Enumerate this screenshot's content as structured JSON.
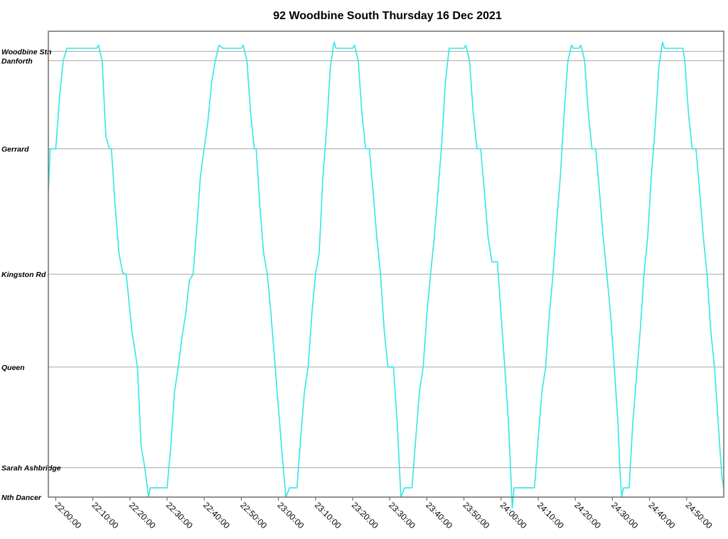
{
  "chart_data": {
    "type": "line",
    "title": "92 Woodbine South Thursday 16 Dec 2021",
    "x_range": [
      "21:58:00",
      "25:00:00"
    ],
    "x_ticks": [
      "22:00:00",
      "22:10:00",
      "22:20:00",
      "22:30:00",
      "22:40:00",
      "22:50:00",
      "23:00:00",
      "23:10:00",
      "23:20:00",
      "23:30:00",
      "23:40:00",
      "23:50:00",
      "24:00:00",
      "24:10:00",
      "24:20:00",
      "24:30:00",
      "24:40:00",
      "24:50:00"
    ],
    "stops": [
      {
        "name": "Woodbine Stn",
        "distance": 0.0
      },
      {
        "name": "Danforth",
        "distance": 0.06
      },
      {
        "name": "Gerrard",
        "distance": 0.63
      },
      {
        "name": "Kingston Rd",
        "distance": 1.44
      },
      {
        "name": "Queen",
        "distance": 2.04
      },
      {
        "name": "Sarah Ashbridge",
        "distance": 2.69
      },
      {
        "name": "Nth Dancer",
        "distance": 2.88
      }
    ],
    "y_range": [
      -0.13,
      2.88
    ],
    "y_note": "distance from Woodbine Stn (km), increasing downward",
    "grid": true,
    "series": [
      {
        "color": "#33e6e6",
        "points": [
          [
            "21:58:00",
            0.9
          ],
          [
            "21:58:30",
            0.63
          ],
          [
            "22:00:00",
            0.63
          ],
          [
            "22:01:00",
            0.3
          ],
          [
            "22:02:00",
            0.06
          ],
          [
            "22:03:00",
            -0.02
          ],
          [
            "22:05:00",
            -0.02
          ],
          [
            "22:11:00",
            -0.02
          ],
          [
            "22:11:30",
            -0.04
          ],
          [
            "22:12:30",
            0.06
          ],
          [
            "22:13:30",
            0.55
          ],
          [
            "22:14:30",
            0.63
          ],
          [
            "22:15:00",
            0.63
          ],
          [
            "22:16:00",
            1.0
          ],
          [
            "22:17:00",
            1.3
          ],
          [
            "22:18:00",
            1.43
          ],
          [
            "22:19:00",
            1.44
          ],
          [
            "22:20:30",
            1.8
          ],
          [
            "22:22:00",
            2.04
          ],
          [
            "22:23:00",
            2.55
          ],
          [
            "22:24:00",
            2.69
          ],
          [
            "22:25:00",
            2.88
          ],
          [
            "22:25:30",
            2.82
          ],
          [
            "22:30:00",
            2.82
          ],
          [
            "22:31:00",
            2.55
          ],
          [
            "22:32:00",
            2.2
          ],
          [
            "22:33:00",
            2.04
          ],
          [
            "22:34:00",
            1.85
          ],
          [
            "22:35:00",
            1.7
          ],
          [
            "22:36:00",
            1.48
          ],
          [
            "22:37:00",
            1.44
          ],
          [
            "22:38:00",
            1.14
          ],
          [
            "22:39:00",
            0.8
          ],
          [
            "22:40:00",
            0.63
          ],
          [
            "22:41:00",
            0.45
          ],
          [
            "22:42:00",
            0.2
          ],
          [
            "22:43:00",
            0.06
          ],
          [
            "22:44:00",
            -0.04
          ],
          [
            "22:45:00",
            -0.02
          ],
          [
            "22:50:00",
            -0.02
          ],
          [
            "22:50:30",
            -0.04
          ],
          [
            "22:51:30",
            0.06
          ],
          [
            "22:52:30",
            0.4
          ],
          [
            "22:53:30",
            0.63
          ],
          [
            "22:54:00",
            0.63
          ],
          [
            "22:55:00",
            1.0
          ],
          [
            "22:56:00",
            1.3
          ],
          [
            "22:57:00",
            1.44
          ],
          [
            "22:58:00",
            1.7
          ],
          [
            "22:59:00",
            2.0
          ],
          [
            "23:00:00",
            2.3
          ],
          [
            "23:01:00",
            2.6
          ],
          [
            "23:02:00",
            2.88
          ],
          [
            "23:03:00",
            2.82
          ],
          [
            "23:05:00",
            2.82
          ],
          [
            "23:06:00",
            2.5
          ],
          [
            "23:07:00",
            2.2
          ],
          [
            "23:08:00",
            2.04
          ],
          [
            "23:09:00",
            1.7
          ],
          [
            "23:10:00",
            1.44
          ],
          [
            "23:11:00",
            1.3
          ],
          [
            "23:12:00",
            0.8
          ],
          [
            "23:13:00",
            0.5
          ],
          [
            "23:14:00",
            0.1
          ],
          [
            "23:15:00",
            -0.06
          ],
          [
            "23:15:30",
            -0.02
          ],
          [
            "23:20:00",
            -0.02
          ],
          [
            "23:20:30",
            -0.04
          ],
          [
            "23:21:30",
            0.06
          ],
          [
            "23:22:30",
            0.4
          ],
          [
            "23:23:30",
            0.63
          ],
          [
            "23:24:30",
            0.63
          ],
          [
            "23:25:30",
            0.9
          ],
          [
            "23:26:30",
            1.2
          ],
          [
            "23:27:30",
            1.44
          ],
          [
            "23:28:30",
            1.8
          ],
          [
            "23:29:30",
            2.04
          ],
          [
            "23:31:00",
            2.04
          ],
          [
            "23:32:00",
            2.4
          ],
          [
            "23:33:00",
            2.88
          ],
          [
            "23:34:00",
            2.82
          ],
          [
            "23:36:00",
            2.82
          ],
          [
            "23:37:00",
            2.5
          ],
          [
            "23:38:00",
            2.2
          ],
          [
            "23:39:00",
            2.04
          ],
          [
            "23:40:00",
            1.7
          ],
          [
            "23:41:00",
            1.44
          ],
          [
            "23:42:00",
            1.2
          ],
          [
            "23:43:00",
            0.9
          ],
          [
            "23:44:00",
            0.6
          ],
          [
            "23:45:00",
            0.2
          ],
          [
            "23:46:00",
            -0.02
          ],
          [
            "23:50:00",
            -0.02
          ],
          [
            "23:50:30",
            -0.04
          ],
          [
            "23:51:30",
            0.06
          ],
          [
            "23:52:30",
            0.4
          ],
          [
            "23:53:30",
            0.63
          ],
          [
            "23:54:30",
            0.63
          ],
          [
            "23:55:30",
            0.9
          ],
          [
            "23:56:30",
            1.2
          ],
          [
            "23:57:30",
            1.36
          ],
          [
            "23:59:00",
            1.36
          ],
          [
            "24:00:00",
            1.7
          ],
          [
            "24:01:00",
            2.04
          ],
          [
            "24:02:00",
            2.4
          ],
          [
            "24:03:00",
            2.95
          ],
          [
            "24:03:30",
            2.82
          ],
          [
            "24:09:00",
            2.82
          ],
          [
            "24:10:00",
            2.5
          ],
          [
            "24:11:00",
            2.2
          ],
          [
            "24:12:00",
            2.04
          ],
          [
            "24:13:00",
            1.7
          ],
          [
            "24:14:00",
            1.44
          ],
          [
            "24:15:00",
            1.1
          ],
          [
            "24:16:00",
            0.8
          ],
          [
            "24:17:00",
            0.4
          ],
          [
            "24:18:00",
            0.06
          ],
          [
            "24:19:00",
            -0.04
          ],
          [
            "24:19:30",
            -0.02
          ],
          [
            "24:21:00",
            -0.02
          ],
          [
            "24:21:30",
            -0.04
          ],
          [
            "24:22:30",
            0.06
          ],
          [
            "24:23:30",
            0.4
          ],
          [
            "24:24:30",
            0.63
          ],
          [
            "24:25:30",
            0.63
          ],
          [
            "24:26:30",
            0.9
          ],
          [
            "24:27:30",
            1.2
          ],
          [
            "24:28:30",
            1.44
          ],
          [
            "24:29:30",
            1.7
          ],
          [
            "24:30:30",
            2.04
          ],
          [
            "24:31:30",
            2.4
          ],
          [
            "24:32:00",
            2.69
          ],
          [
            "24:32:30",
            2.88
          ],
          [
            "24:33:00",
            2.82
          ],
          [
            "24:34:30",
            2.82
          ],
          [
            "24:35:30",
            2.4
          ],
          [
            "24:36:30",
            2.1
          ],
          [
            "24:37:30",
            1.8
          ],
          [
            "24:38:30",
            1.44
          ],
          [
            "24:39:30",
            1.2
          ],
          [
            "24:40:30",
            0.8
          ],
          [
            "24:41:30",
            0.5
          ],
          [
            "24:42:30",
            0.1
          ],
          [
            "24:43:30",
            -0.06
          ],
          [
            "24:44:00",
            -0.02
          ],
          [
            "24:49:00",
            -0.02
          ],
          [
            "24:49:30",
            0.06
          ],
          [
            "24:50:30",
            0.4
          ],
          [
            "24:51:30",
            0.63
          ],
          [
            "24:52:30",
            0.63
          ],
          [
            "24:53:30",
            0.9
          ],
          [
            "24:54:30",
            1.2
          ],
          [
            "24:55:30",
            1.44
          ],
          [
            "24:56:30",
            1.8
          ],
          [
            "24:57:30",
            2.04
          ],
          [
            "24:58:30",
            2.4
          ],
          [
            "24:59:30",
            2.75
          ],
          [
            "25:00:00",
            2.82
          ]
        ]
      }
    ]
  }
}
